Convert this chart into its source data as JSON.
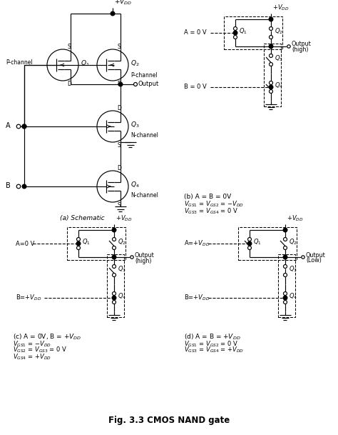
{
  "title": "Fig. 3.3 CMOS NAND gate",
  "bg": "white",
  "lc": "black",
  "sections": {
    "a_label": "(a) Schematic",
    "b_header": "(b) A = B = 0V",
    "b_line1": "V_GS1 = V_GS2 = -V_DD",
    "b_line2": "V_GS3 = V_GS4 = 0 V",
    "c_header": "(c) A = 0V, B = +V_DD",
    "c_line1": "V_GS1 = -V_DD",
    "c_line2": "V_GS2 = V_GS3 = 0 V",
    "c_line3": "V_GS4 = +V_DD",
    "d_header": "(d) A = B = +V_DD",
    "d_line1": "V_GS1 = V_GS2 = 0 V",
    "d_line2": "V_GS3 = V_GS4 = +V_DD"
  }
}
